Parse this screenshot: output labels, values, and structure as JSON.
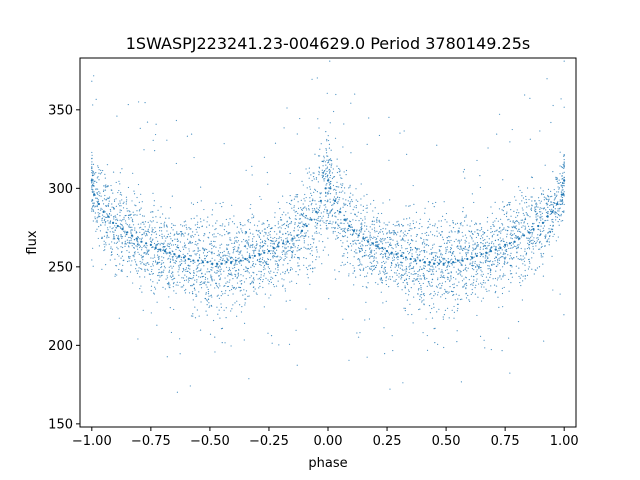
{
  "chart_data": {
    "type": "scatter",
    "title": "1SWASPJ223241.23-004629.0 Period 3780149.25s",
    "xlabel": "phase",
    "ylabel": "flux",
    "xlim": [
      -1.05,
      1.05
    ],
    "ylim": [
      148,
      383
    ],
    "xticks": [
      -1.0,
      -0.75,
      -0.5,
      -0.25,
      0.0,
      0.25,
      0.5,
      0.75,
      1.0
    ],
    "xtick_labels": [
      "−1.00",
      "−0.75",
      "−0.50",
      "−0.25",
      "0.00",
      "0.25",
      "0.50",
      "0.75",
      "1.00"
    ],
    "yticks": [
      150,
      200,
      250,
      300,
      350
    ],
    "ytick_labels": [
      "150",
      "200",
      "250",
      "300",
      "350"
    ],
    "grid": false,
    "series": [
      {
        "marker_color": "#1f77b4",
        "marker": "dot",
        "x": [
          -1.0,
          -0.99,
          -0.97,
          -0.95,
          -0.93,
          -0.91,
          -0.89,
          -0.87,
          -0.85,
          -0.83,
          -0.81,
          -0.79,
          -0.77,
          -0.75,
          -0.73,
          -0.71,
          -0.69,
          -0.67,
          -0.65,
          -0.63,
          -0.61,
          -0.59,
          -0.57,
          -0.55,
          -0.53,
          -0.51,
          -0.49,
          -0.47,
          -0.45,
          -0.43,
          -0.41,
          -0.39,
          -0.37,
          -0.35,
          -0.33,
          -0.31,
          -0.29,
          -0.27,
          -0.25,
          -0.23,
          -0.21,
          -0.19,
          -0.17,
          -0.15,
          -0.13,
          -0.11,
          -0.09,
          -0.07,
          -0.05,
          -0.03,
          -0.01,
          0.0,
          0.01,
          0.03,
          0.05,
          0.07,
          0.09,
          0.11,
          0.13,
          0.15,
          0.17,
          0.19,
          0.21,
          0.23,
          0.25,
          0.27,
          0.29,
          0.31,
          0.33,
          0.35,
          0.37,
          0.39,
          0.41,
          0.43,
          0.45,
          0.47,
          0.49,
          0.51,
          0.53,
          0.55,
          0.57,
          0.59,
          0.61,
          0.63,
          0.65,
          0.67,
          0.69,
          0.71,
          0.73,
          0.75,
          0.77,
          0.79,
          0.81,
          0.83,
          0.85,
          0.87,
          0.89,
          0.91,
          0.93,
          0.95,
          0.97,
          0.99,
          1.0
        ],
        "y": [
          305,
          296,
          290,
          285,
          282,
          278,
          276,
          274,
          272,
          270,
          268,
          266,
          265,
          264,
          262,
          261,
          260,
          259,
          258,
          257,
          256,
          255,
          254,
          254,
          253,
          253,
          252,
          252,
          252,
          253,
          253,
          254,
          254,
          255,
          256,
          257,
          258,
          259,
          260,
          262,
          263,
          265,
          266,
          268,
          270,
          273,
          276,
          280,
          285,
          292,
          300,
          305,
          300,
          292,
          285,
          280,
          276,
          273,
          270,
          268,
          266,
          265,
          263,
          262,
          260,
          259,
          258,
          257,
          256,
          255,
          254,
          254,
          253,
          253,
          252,
          252,
          252,
          253,
          253,
          254,
          254,
          255,
          256,
          257,
          258,
          259,
          260,
          261,
          262,
          264,
          265,
          266,
          268,
          270,
          272,
          274,
          276,
          278,
          282,
          285,
          290,
          296,
          305
        ],
        "spread": [
          14,
          16,
          18,
          20,
          20,
          20,
          20,
          20,
          20,
          20,
          20,
          20,
          20,
          20,
          20,
          20,
          20,
          20,
          22,
          22,
          22,
          22,
          24,
          24,
          24,
          24,
          24,
          24,
          24,
          24,
          22,
          22,
          22,
          22,
          22,
          20,
          20,
          20,
          20,
          20,
          20,
          20,
          20,
          20,
          20,
          22,
          22,
          24,
          26,
          28,
          28,
          28,
          28,
          28,
          26,
          24,
          22,
          22,
          20,
          20,
          20,
          20,
          20,
          20,
          20,
          20,
          20,
          22,
          22,
          22,
          22,
          22,
          24,
          24,
          24,
          24,
          24,
          24,
          24,
          24,
          22,
          22,
          22,
          22,
          20,
          20,
          20,
          20,
          20,
          20,
          20,
          20,
          20,
          20,
          20,
          20,
          20,
          20,
          20,
          18,
          16,
          14,
          14
        ]
      }
    ]
  }
}
